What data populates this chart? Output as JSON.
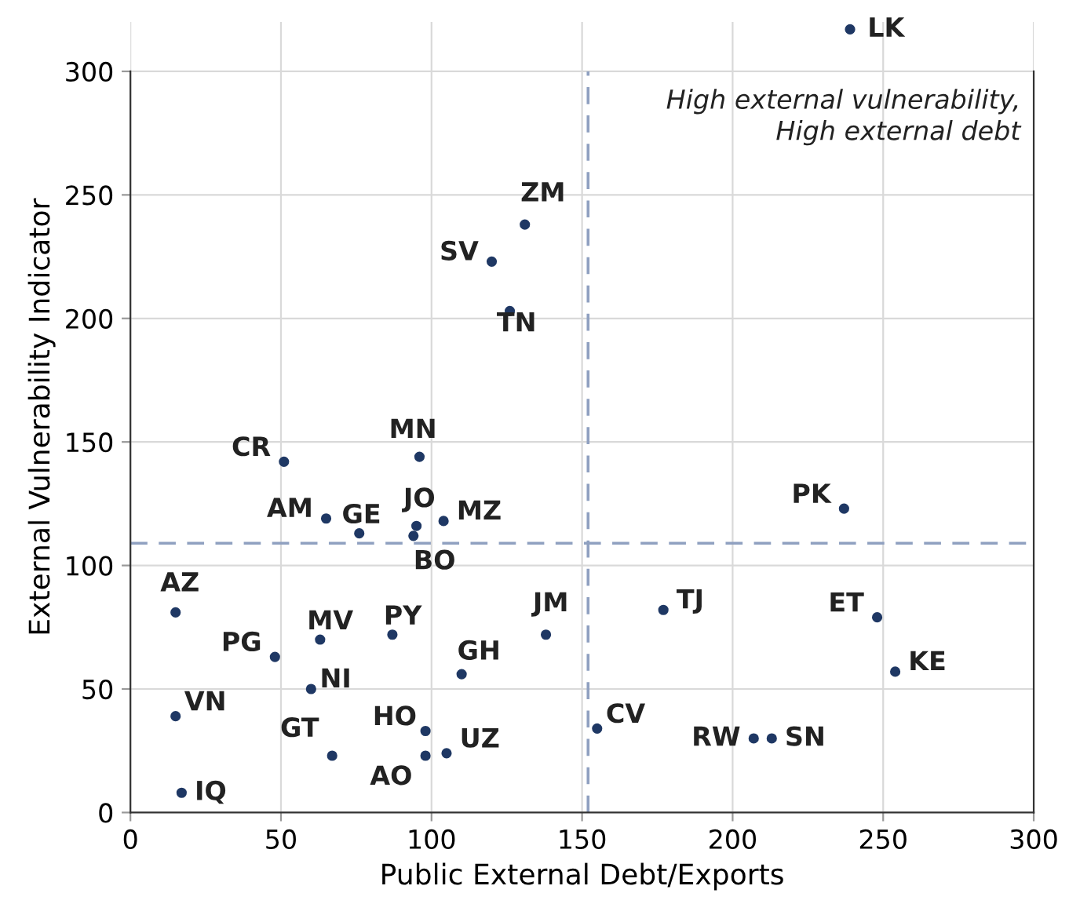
{
  "chart_data": {
    "type": "scatter",
    "xlabel": "Public External Debt/Exports",
    "ylabel": "External Vulnerability Indicator",
    "xlim": [
      0,
      300
    ],
    "ylim": [
      0,
      320
    ],
    "xticks": [
      0,
      50,
      100,
      150,
      200,
      250,
      300
    ],
    "yticks": [
      0,
      50,
      100,
      150,
      200,
      250,
      300
    ],
    "grid": true,
    "marker": "circle",
    "series": [
      {
        "color": "#1f3864",
        "x": [
          239,
          131,
          120,
          126,
          96,
          51,
          65,
          76,
          95,
          94,
          104,
          237,
          15,
          48,
          63,
          87,
          138,
          177,
          248,
          254,
          110,
          60,
          15,
          98,
          105,
          67,
          98,
          155,
          207,
          213,
          17
        ],
        "values": [
          317,
          238,
          223,
          203,
          144,
          142,
          119,
          113,
          116,
          112,
          118,
          123,
          81,
          63,
          70,
          72,
          72,
          82,
          79,
          57,
          56,
          50,
          39,
          33,
          24,
          23,
          23,
          34,
          30,
          30,
          8
        ]
      }
    ],
    "ref_lines": [
      {
        "axis": "x",
        "value": 152,
        "color": "#8fa0c0",
        "line_style": "dashed"
      },
      {
        "axis": "y",
        "value": 109,
        "color": "#8fa0c0",
        "line_style": "dashed"
      }
    ],
    "annotations": [
      {
        "text": "LK",
        "x": 239,
        "y": 317
      },
      {
        "text": "ZM",
        "x": 131,
        "y": 238
      },
      {
        "text": "SV",
        "x": 120,
        "y": 223
      },
      {
        "text": "TN",
        "x": 126,
        "y": 203
      },
      {
        "text": "MN",
        "x": 96,
        "y": 144
      },
      {
        "text": "CR",
        "x": 51,
        "y": 142
      },
      {
        "text": "AM",
        "x": 65,
        "y": 119
      },
      {
        "text": "GE",
        "x": 76,
        "y": 113
      },
      {
        "text": "JO",
        "x": 95,
        "y": 116
      },
      {
        "text": "BO",
        "x": 94,
        "y": 112
      },
      {
        "text": "MZ",
        "x": 104,
        "y": 118
      },
      {
        "text": "PK",
        "x": 237,
        "y": 123
      },
      {
        "text": "AZ",
        "x": 15,
        "y": 81
      },
      {
        "text": "PG",
        "x": 48,
        "y": 63
      },
      {
        "text": "MV",
        "x": 63,
        "y": 70
      },
      {
        "text": "PY",
        "x": 87,
        "y": 72
      },
      {
        "text": "JM",
        "x": 138,
        "y": 72
      },
      {
        "text": "TJ",
        "x": 177,
        "y": 82
      },
      {
        "text": "ET",
        "x": 248,
        "y": 79
      },
      {
        "text": "KE",
        "x": 254,
        "y": 57
      },
      {
        "text": "GH",
        "x": 110,
        "y": 56
      },
      {
        "text": "NI",
        "x": 60,
        "y": 50
      },
      {
        "text": "VN",
        "x": 15,
        "y": 39
      },
      {
        "text": "HO",
        "x": 98,
        "y": 33
      },
      {
        "text": "UZ",
        "x": 105,
        "y": 24
      },
      {
        "text": "GT",
        "x": 67,
        "y": 23
      },
      {
        "text": "AO",
        "x": 98,
        "y": 23
      },
      {
        "text": "CV",
        "x": 155,
        "y": 34
      },
      {
        "text": "RW",
        "x": 207,
        "y": 30
      },
      {
        "text": "SN",
        "x": 213,
        "y": 30
      },
      {
        "text": "IQ",
        "x": 17,
        "y": 8
      },
      "High external vulnerability,\nHigh external debt"
    ]
  }
}
